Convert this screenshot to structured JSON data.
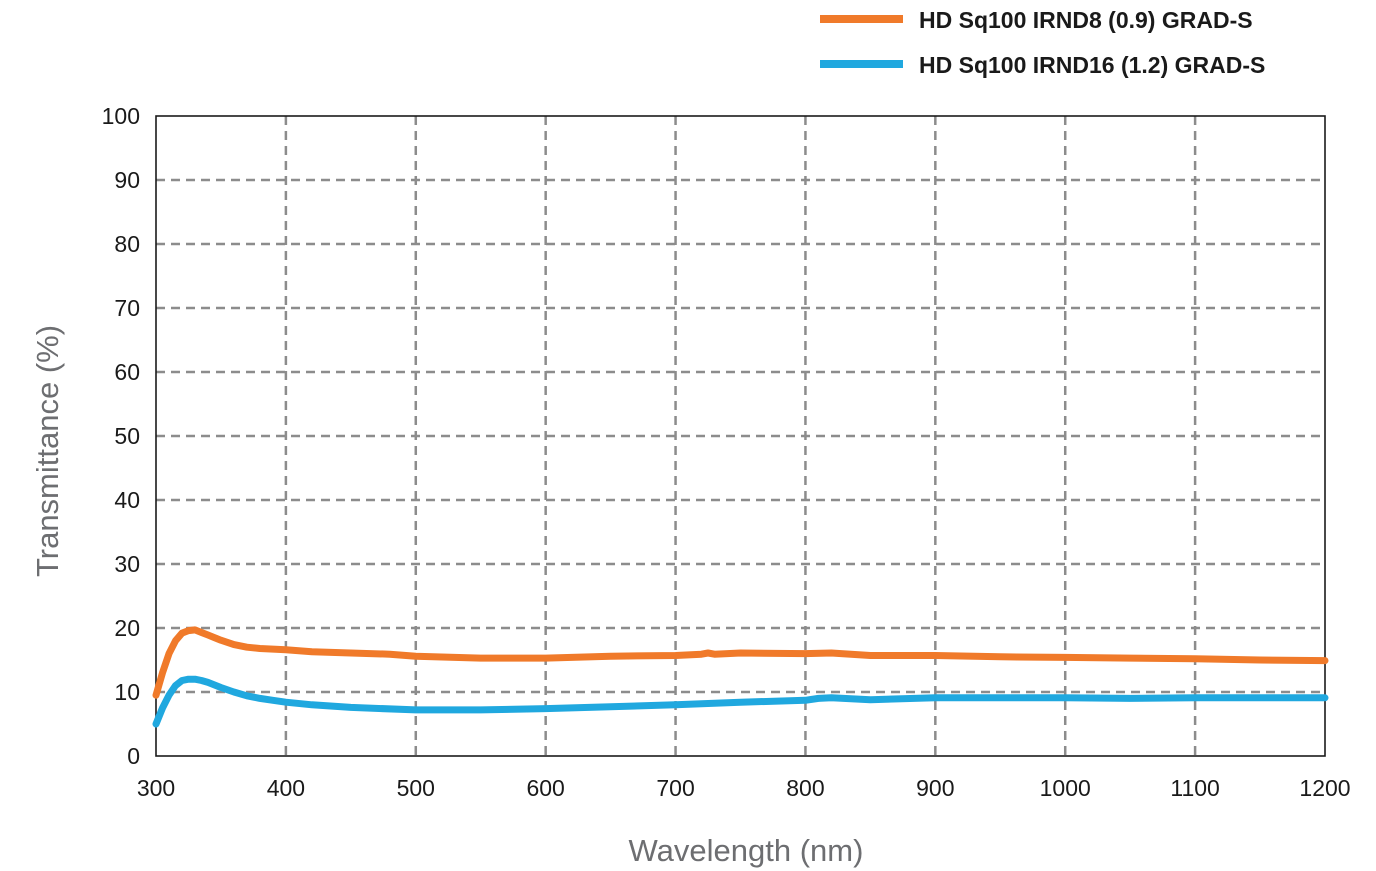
{
  "chart_data": {
    "type": "line",
    "title": "",
    "xlabel": "Wavelength (nm)",
    "ylabel": "Transmittance (%)",
    "xlim": [
      300,
      1200
    ],
    "ylim": [
      0,
      100
    ],
    "xticks": [
      "300",
      "400",
      "500",
      "600",
      "700",
      "800",
      "900",
      "1000",
      "1100",
      "1200"
    ],
    "yticks": [
      "0",
      "10",
      "20",
      "30",
      "40",
      "50",
      "60",
      "70",
      "80",
      "90",
      "100"
    ],
    "grid": true,
    "legend_position": "top-right",
    "series": [
      {
        "name": "HD Sq100 IRND8 (0.9) GRAD-S",
        "color": "#f07a2a",
        "x": [
          300,
          305,
          310,
          315,
          320,
          325,
          330,
          335,
          340,
          345,
          350,
          360,
          370,
          380,
          400,
          420,
          450,
          480,
          500,
          550,
          600,
          650,
          700,
          720,
          725,
          730,
          750,
          800,
          820,
          850,
          900,
          950,
          1000,
          1050,
          1100,
          1150,
          1200
        ],
        "y": [
          9.5,
          13,
          16,
          18,
          19.2,
          19.6,
          19.7,
          19.3,
          18.9,
          18.5,
          18.1,
          17.4,
          17.0,
          16.8,
          16.6,
          16.3,
          16.1,
          15.9,
          15.6,
          15.3,
          15.3,
          15.6,
          15.7,
          15.9,
          16.1,
          15.9,
          16.1,
          16.0,
          16.1,
          15.7,
          15.7,
          15.5,
          15.4,
          15.3,
          15.2,
          15.0,
          14.9
        ]
      },
      {
        "name": "HD Sq100 IRND16 (1.2) GRAD-S",
        "color": "#20a8df",
        "x": [
          300,
          305,
          310,
          315,
          320,
          325,
          330,
          335,
          340,
          350,
          360,
          370,
          380,
          390,
          400,
          420,
          450,
          500,
          550,
          600,
          650,
          700,
          750,
          800,
          810,
          820,
          850,
          900,
          950,
          1000,
          1050,
          1100,
          1150,
          1200
        ],
        "y": [
          5.0,
          7.5,
          9.5,
          11.0,
          11.8,
          12.0,
          12.0,
          11.8,
          11.5,
          10.7,
          10.0,
          9.4,
          9.0,
          8.7,
          8.4,
          8.0,
          7.6,
          7.2,
          7.2,
          7.4,
          7.7,
          8.0,
          8.4,
          8.7,
          9.0,
          9.1,
          8.8,
          9.1,
          9.1,
          9.1,
          9.0,
          9.1,
          9.1,
          9.1
        ]
      }
    ]
  }
}
